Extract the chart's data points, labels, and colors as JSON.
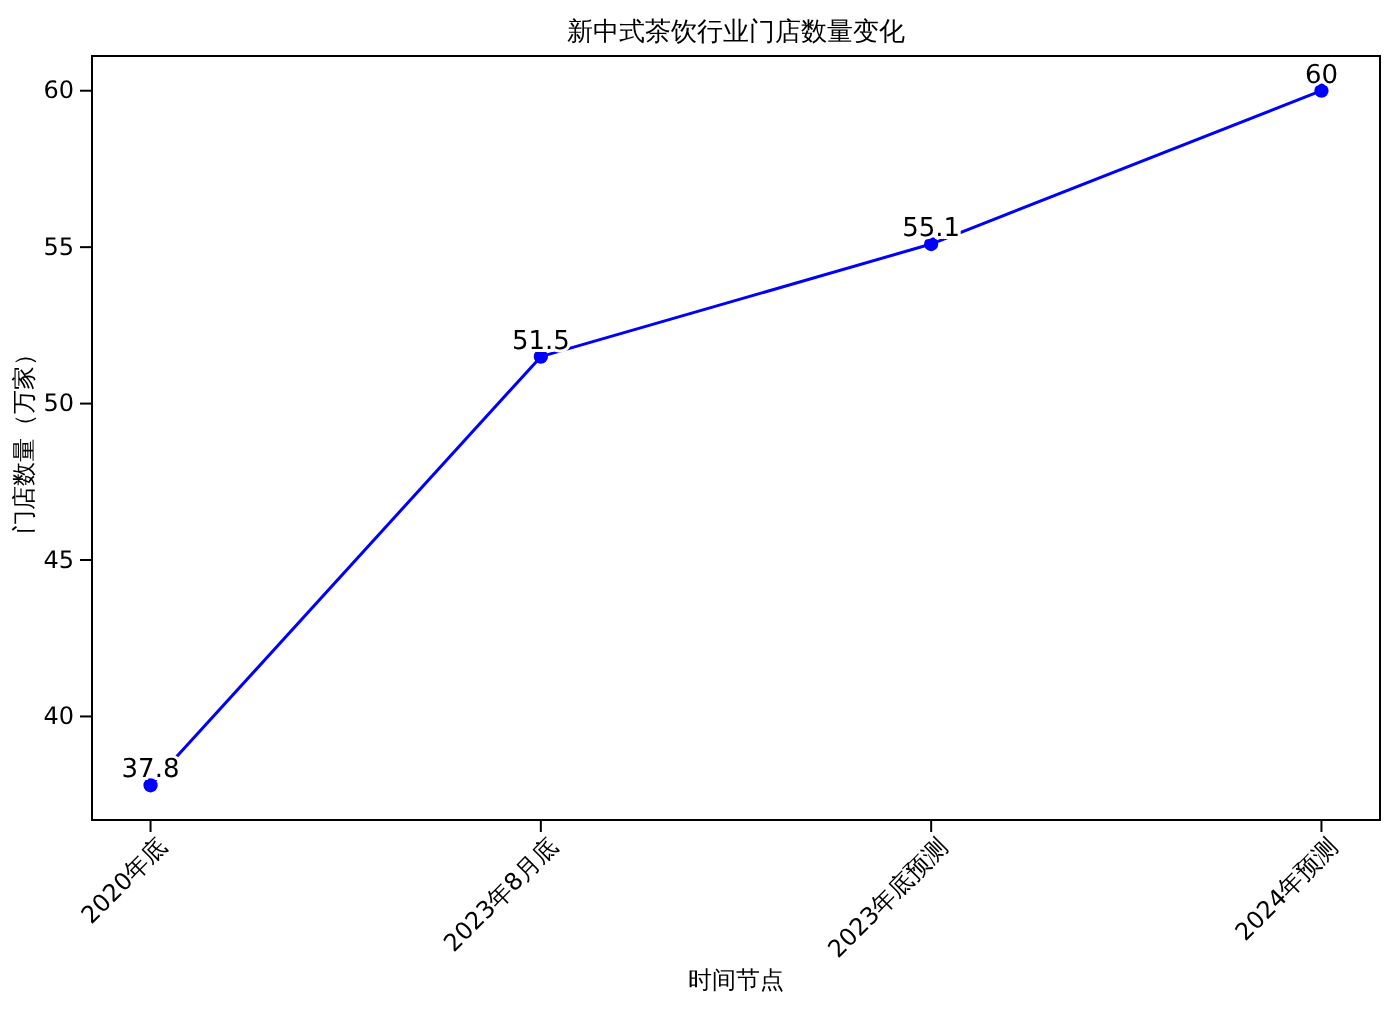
{
  "chart_data": {
    "type": "line",
    "title": "新中式茶饮行业门店数量变化",
    "xlabel": "时间节点",
    "ylabel": "门店数量（万家）",
    "categories": [
      "2020年底",
      "2023年8月底",
      "2023年底预测",
      "2024年预测"
    ],
    "series": [
      {
        "color": "#0000ff",
        "values": [
          37.8,
          51.5,
          55.1,
          60
        ]
      }
    ],
    "ylim": [
      36.69,
      61.11
    ],
    "yticks": [
      40,
      45,
      50,
      55,
      60
    ],
    "marker": "circle",
    "data_labels": true,
    "grid": false
  }
}
